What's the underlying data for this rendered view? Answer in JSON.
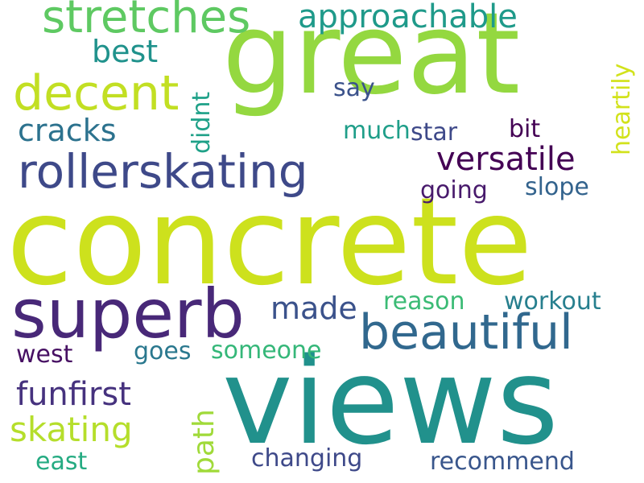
{
  "words": {
    "concrete": "concrete",
    "views": "views",
    "great": "great",
    "superb": "superb",
    "rollerskating": "rollerskating",
    "beautiful": "beautiful",
    "stretches": "stretches",
    "decent": "decent",
    "approachable": "approachable",
    "versatile": "versatile",
    "funfirst": "funfirst",
    "skating": "skating",
    "cracks": "cracks",
    "best": "best",
    "made": "made",
    "heartily": "heartily",
    "didnt": "didnt",
    "path": "path",
    "say": "say",
    "much": "much",
    "star": "star",
    "bit": "bit",
    "going": "going",
    "slope": "slope",
    "reason": "reason",
    "workout": "workout",
    "west": "west",
    "goes": "goes",
    "someone": "someone",
    "changing": "changing",
    "east": "east",
    "recommend": "recommend"
  },
  "colors": {
    "background": "#ffffff",
    "palette": [
      "#440154",
      "#482878",
      "#3e4989",
      "#31688e",
      "#26828e",
      "#1f9e89",
      "#35b779",
      "#6ece58",
      "#b5de2b",
      "#fde725"
    ]
  }
}
